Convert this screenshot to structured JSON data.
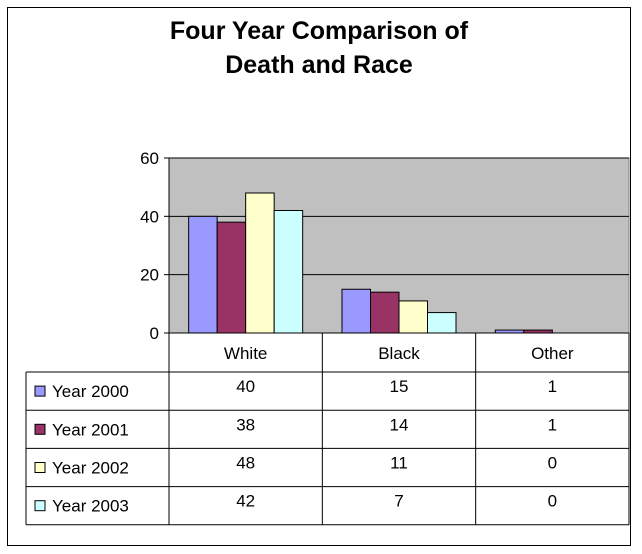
{
  "chart_data": {
    "type": "bar",
    "title_lines": [
      "Four Year Comparison of",
      "Death and Race"
    ],
    "categories": [
      "White",
      "Black",
      "Other"
    ],
    "series": [
      {
        "name": "Year 2000",
        "values": [
          40,
          15,
          1
        ],
        "color": "#9999FF"
      },
      {
        "name": "Year 2001",
        "values": [
          38,
          14,
          1
        ],
        "color": "#993366"
      },
      {
        "name": "Year 2002",
        "values": [
          48,
          11,
          0
        ],
        "color": "#FFFFCC"
      },
      {
        "name": "Year 2003",
        "values": [
          42,
          7,
          0
        ],
        "color": "#CCFFFF"
      }
    ],
    "ylim": [
      0,
      60
    ],
    "yticks": [
      "0",
      "20",
      "40",
      "60"
    ],
    "grid": true,
    "plot_background": "#C0C0C0",
    "legend": "data table"
  }
}
